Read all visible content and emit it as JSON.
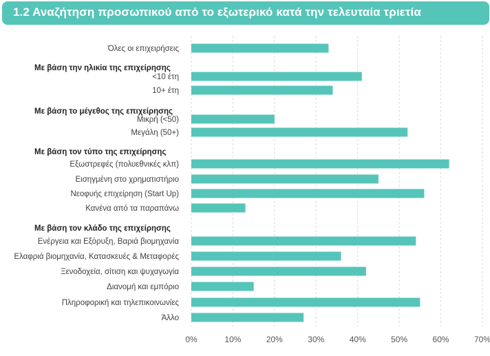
{
  "header": {
    "title": "1.2 Αναζήτηση προσωπικού από το εξωτερικό κατά την τελευταία τριετία"
  },
  "colors": {
    "header_bg": "#56c5b9",
    "bar": "#56c5b9"
  },
  "chart_data": {
    "type": "bar",
    "orientation": "horizontal",
    "title": "1.2 Αναζήτηση προσωπικού από το εξωτερικό κατά την τελευταία τριετία",
    "xlim": [
      0,
      70
    ],
    "x_ticks": [
      0,
      10,
      20,
      30,
      40,
      50,
      60,
      70
    ],
    "x_tick_labels": [
      "0%",
      "10%",
      "20%",
      "30%",
      "40%",
      "50%",
      "60%",
      "70%"
    ],
    "grid": "vertical",
    "groups": [
      {
        "label": "",
        "items": [
          {
            "label": "Όλες οι επιχειρήσεις",
            "value": 33
          }
        ]
      },
      {
        "label": "Με βάση την ηλικία της επιχείρησης",
        "items": [
          {
            "label": "<10 έτη",
            "value": 41
          },
          {
            "label": "10+ έτη",
            "value": 34
          }
        ]
      },
      {
        "label": "Με βάση το μέγεθος της επιχείρησης",
        "items": [
          {
            "label": "Μικρή (<50)",
            "value": 20
          },
          {
            "label": "Μεγάλη (50+)",
            "value": 52
          }
        ]
      },
      {
        "label": "Με βάση τον τύπο της επιχείρησης",
        "items": [
          {
            "label": "Εξωστρεφές (πολυεθνικές κλπ)",
            "value": 62
          },
          {
            "label": "Εισηγμένη στο χρηματιστήριο",
            "value": 45
          },
          {
            "label": "Νεοφυής επιχείρηση (Start Up)",
            "value": 56
          },
          {
            "label": "Κανένα από τα παραπάνω",
            "value": 13
          }
        ]
      },
      {
        "label": "Με βάση τον κλάδο της επιχείρησης",
        "items": [
          {
            "label": "Ενέργεια και Εξόρυξη, Βαριά βιομηχανία",
            "value": 54
          },
          {
            "label": "Ελαφριά βιομηχανία, Κατασκευές & Μεταφορές",
            "value": 36
          },
          {
            "label": "Ξενοδοχεία, σίτιση και ψυχαγωγία",
            "value": 42
          },
          {
            "label": "Διανομή και εμπόριο",
            "value": 15
          },
          {
            "label": "Πληροφορική και τηλεπικοινωνίες",
            "value": 55
          },
          {
            "label": "Άλλο",
            "value": 27
          }
        ]
      }
    ]
  }
}
